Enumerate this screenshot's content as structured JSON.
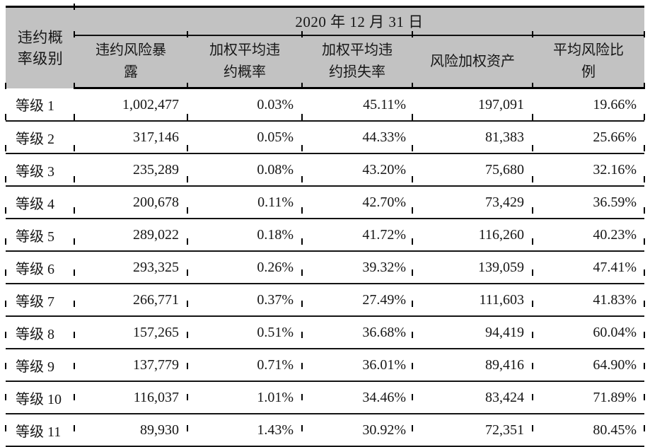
{
  "colors": {
    "header_bg": "#c2c2c2",
    "rule": "#000000"
  },
  "table": {
    "date_header": "2020 年 12 月 31 日",
    "row_label_header": "违约概\n率级别",
    "columns": [
      "违约风险暴\n露",
      "加权平均违\n约概率",
      "加权平均违\n约损失率",
      "风险加权资产",
      "平均风险比\n例"
    ],
    "rows": [
      {
        "grade": "等级 1",
        "ead": "1,002,477",
        "pd": "0.03%",
        "lgd": "45.11%",
        "rwa": "197,091",
        "avg_risk": "19.66%"
      },
      {
        "grade": "等级 2",
        "ead": "317,146",
        "pd": "0.05%",
        "lgd": "44.33%",
        "rwa": "81,383",
        "avg_risk": "25.66%"
      },
      {
        "grade": "等级 3",
        "ead": "235,289",
        "pd": "0.08%",
        "lgd": "43.20%",
        "rwa": "75,680",
        "avg_risk": "32.16%"
      },
      {
        "grade": "等级 4",
        "ead": "200,678",
        "pd": "0.11%",
        "lgd": "42.70%",
        "rwa": "73,429",
        "avg_risk": "36.59%"
      },
      {
        "grade": "等级 5",
        "ead": "289,022",
        "pd": "0.18%",
        "lgd": "41.72%",
        "rwa": "116,260",
        "avg_risk": "40.23%"
      },
      {
        "grade": "等级 6",
        "ead": "293,325",
        "pd": "0.26%",
        "lgd": "39.32%",
        "rwa": "139,059",
        "avg_risk": "47.41%"
      },
      {
        "grade": "等级 7",
        "ead": "266,771",
        "pd": "0.37%",
        "lgd": "27.49%",
        "rwa": "111,603",
        "avg_risk": "41.83%"
      },
      {
        "grade": "等级 8",
        "ead": "157,265",
        "pd": "0.51%",
        "lgd": "36.68%",
        "rwa": "94,419",
        "avg_risk": "60.04%"
      },
      {
        "grade": "等级 9",
        "ead": "137,779",
        "pd": "0.71%",
        "lgd": "36.01%",
        "rwa": "89,416",
        "avg_risk": "64.90%"
      },
      {
        "grade": "等级 10",
        "ead": "116,037",
        "pd": "1.01%",
        "lgd": "34.46%",
        "rwa": "83,424",
        "avg_risk": "71.89%"
      },
      {
        "grade": "等级 11",
        "ead": "89,930",
        "pd": "1.43%",
        "lgd": "30.92%",
        "rwa": "72,351",
        "avg_risk": "80.45%"
      }
    ]
  }
}
